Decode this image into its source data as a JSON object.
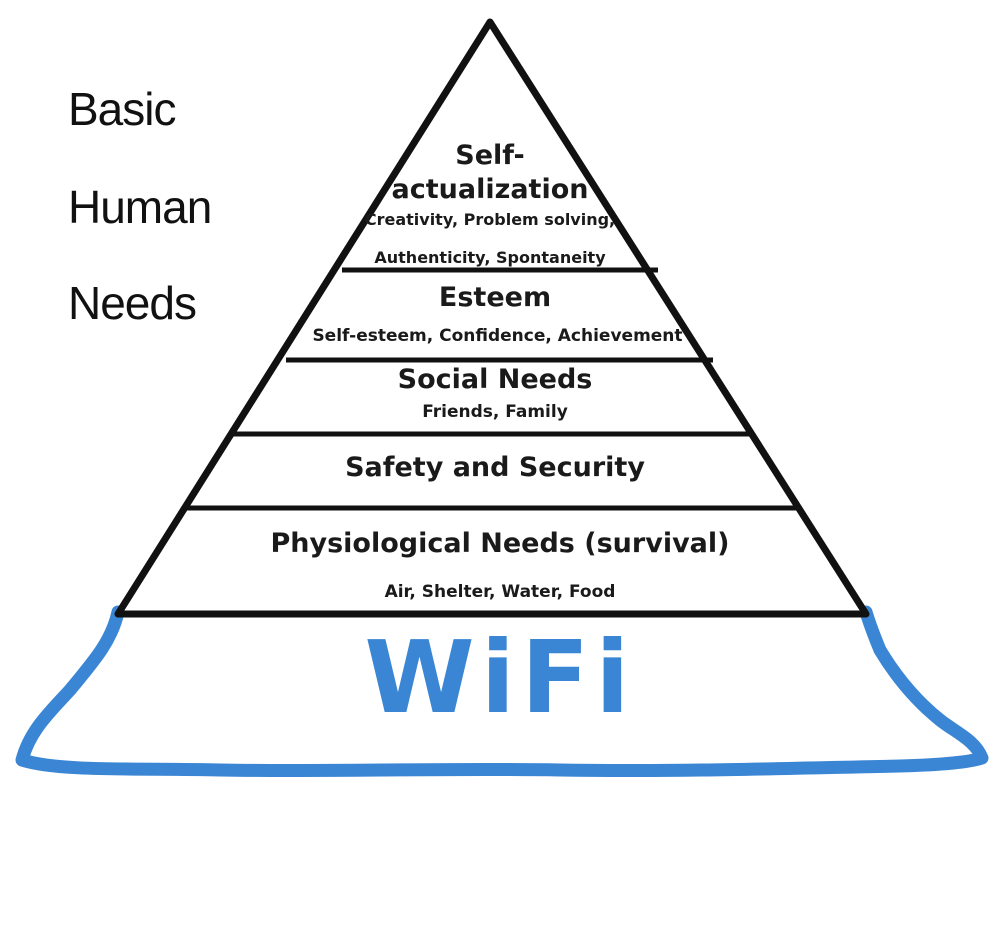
{
  "title": {
    "lines": [
      "Basic",
      "Human",
      "Needs"
    ]
  },
  "levels": [
    {
      "title_lines": [
        "Self-",
        "actualization"
      ],
      "sub_lines": [
        "Creativity, Problem solving,",
        "Authenticity, Spontaneity"
      ]
    },
    {
      "title": "Esteem",
      "sub": "Self-esteem, Confidence, Achievement"
    },
    {
      "title": "Social Needs",
      "sub": "Friends, Family"
    },
    {
      "title": "Safety and Security"
    },
    {
      "title": "Physiological Needs (survival)",
      "sub": "Air, Shelter, Water, Food"
    }
  ],
  "base": {
    "label": "WiFi"
  },
  "colors": {
    "line": "#111111",
    "wifi": "#3b86d4"
  }
}
